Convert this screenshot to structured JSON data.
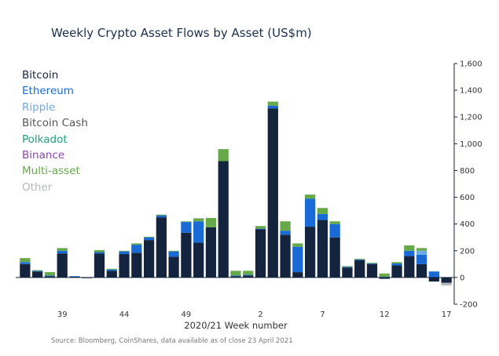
{
  "chart_data": {
    "type": "bar",
    "stacked": true,
    "title": "Weekly Crypto Asset Flows by Asset (US$m)",
    "xlabel": "2020/21 Week number",
    "ylabel": "",
    "ylim": [
      -200,
      1600
    ],
    "yticks": [
      -200,
      0,
      200,
      400,
      600,
      800,
      1000,
      1200,
      1400,
      1600
    ],
    "ytick_labels": [
      "-200",
      "0",
      "200",
      "400",
      "600",
      "800",
      "1,000",
      "1,200",
      "1,400",
      "1,600"
    ],
    "y_axis_side": "right",
    "grid": false,
    "legend_position": "top-left",
    "categories": [
      36,
      37,
      38,
      39,
      40,
      41,
      42,
      43,
      44,
      45,
      46,
      47,
      48,
      49,
      50,
      51,
      52,
      53,
      1,
      2,
      3,
      4,
      5,
      6,
      7,
      8,
      9,
      10,
      11,
      12,
      13,
      14,
      15,
      16,
      17
    ],
    "xtick_labels": [
      {
        "category": 39,
        "label": "39"
      },
      {
        "category": 44,
        "label": "44"
      },
      {
        "category": 49,
        "label": "49"
      },
      {
        "category": 2,
        "label": "2"
      },
      {
        "category": 7,
        "label": "7"
      },
      {
        "category": 12,
        "label": "12"
      },
      {
        "category": 17,
        "label": "17"
      }
    ],
    "series": [
      {
        "name": "Bitcoin",
        "color": "#14243f",
        "values": [
          100,
          45,
          10,
          180,
          5,
          -5,
          180,
          50,
          175,
          185,
          280,
          450,
          155,
          335,
          260,
          375,
          870,
          10,
          15,
          360,
          1265,
          320,
          40,
          380,
          430,
          300,
          75,
          130,
          100,
          -10,
          90,
          160,
          100,
          -30,
          -40
        ]
      },
      {
        "name": "Ethereum",
        "color": "#1a6ad6",
        "values": [
          15,
          5,
          5,
          20,
          5,
          0,
          10,
          10,
          20,
          60,
          20,
          15,
          40,
          80,
          160,
          0,
          0,
          5,
          5,
          5,
          20,
          30,
          190,
          210,
          45,
          100,
          5,
          5,
          5,
          5,
          15,
          40,
          70,
          45,
          0
        ]
      },
      {
        "name": "Ripple",
        "color": "#6fa9e6",
        "values": [
          0,
          0,
          0,
          0,
          0,
          0,
          0,
          0,
          0,
          0,
          0,
          0,
          0,
          0,
          0,
          0,
          0,
          0,
          0,
          0,
          0,
          0,
          0,
          0,
          0,
          0,
          0,
          0,
          0,
          0,
          0,
          0,
          30,
          0,
          0
        ]
      },
      {
        "name": "Bitcoin Cash",
        "color": "#555555",
        "values": [
          0,
          0,
          0,
          0,
          0,
          0,
          0,
          0,
          0,
          0,
          0,
          0,
          0,
          0,
          0,
          0,
          0,
          0,
          0,
          0,
          0,
          0,
          0,
          0,
          0,
          0,
          0,
          0,
          0,
          0,
          0,
          0,
          0,
          0,
          0
        ]
      },
      {
        "name": "Polkadot",
        "color": "#1aa37a",
        "values": [
          0,
          0,
          0,
          0,
          0,
          0,
          0,
          0,
          0,
          0,
          0,
          0,
          0,
          0,
          0,
          0,
          0,
          0,
          0,
          0,
          0,
          0,
          0,
          0,
          0,
          0,
          0,
          0,
          0,
          0,
          0,
          0,
          0,
          0,
          0
        ]
      },
      {
        "name": "Binance",
        "color": "#8e44ad",
        "values": [
          0,
          0,
          0,
          0,
          0,
          0,
          0,
          0,
          0,
          0,
          0,
          0,
          0,
          0,
          0,
          0,
          0,
          0,
          0,
          0,
          0,
          0,
          0,
          0,
          0,
          0,
          0,
          0,
          0,
          0,
          0,
          0,
          0,
          0,
          0
        ]
      },
      {
        "name": "Multi-asset",
        "color": "#66a84a",
        "values": [
          30,
          5,
          25,
          20,
          0,
          0,
          15,
          5,
          5,
          10,
          5,
          5,
          5,
          5,
          20,
          70,
          90,
          35,
          30,
          20,
          30,
          70,
          25,
          30,
          45,
          20,
          5,
          5,
          5,
          25,
          10,
          40,
          20,
          0,
          0
        ]
      },
      {
        "name": "Other",
        "color": "#b4b8bd",
        "values": [
          0,
          0,
          0,
          0,
          0,
          0,
          0,
          0,
          0,
          0,
          0,
          0,
          0,
          0,
          5,
          0,
          0,
          0,
          0,
          0,
          0,
          0,
          0,
          0,
          0,
          0,
          0,
          0,
          0,
          0,
          0,
          0,
          0,
          0,
          -20
        ]
      }
    ]
  },
  "source": "Source: Bloomberg, CoinShares, data available as of close 23 April 2021"
}
